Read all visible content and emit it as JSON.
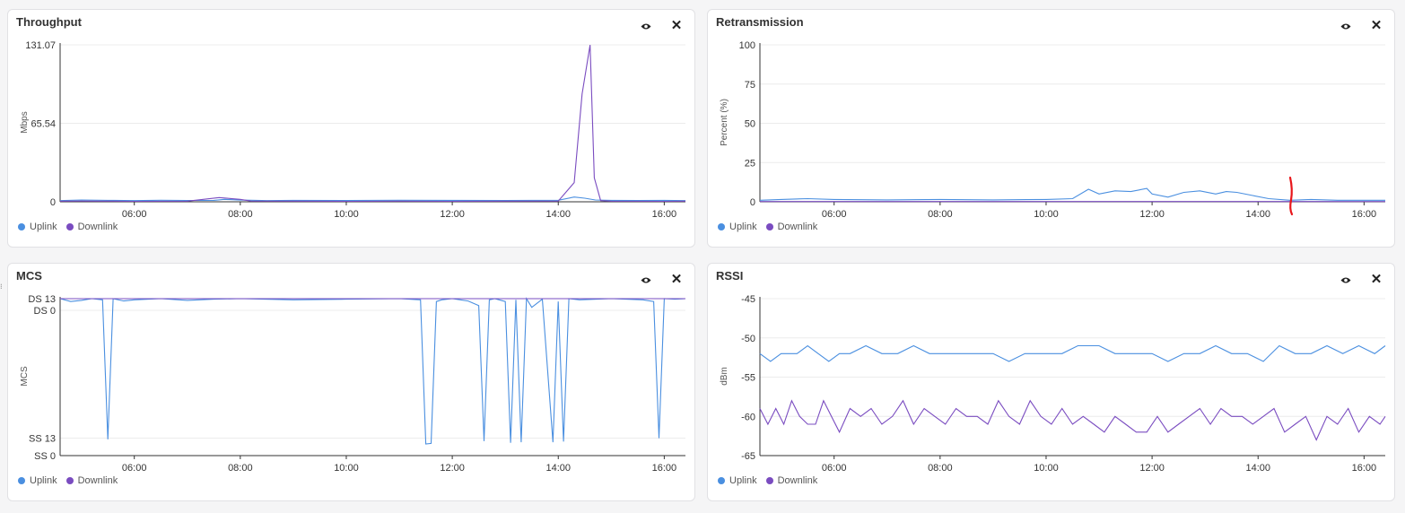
{
  "colors": {
    "uplink": "#4a8fe0",
    "downlink": "#7a4cc0",
    "annotation": "#e8161b",
    "grid": "#ececec"
  },
  "icons": {
    "eye": "eye-icon",
    "close": "close-icon"
  },
  "common_x_ticks": [
    "06:00",
    "08:00",
    "10:00",
    "12:00",
    "14:00",
    "16:00"
  ],
  "panels": [
    {
      "title": "Throughput",
      "legend": [
        "Uplink",
        "Downlink"
      ]
    },
    {
      "title": "Retransmission",
      "legend": [
        "Uplink",
        "Downlink"
      ]
    },
    {
      "title": "MCS",
      "legend": [
        "Uplink",
        "Downlink"
      ]
    },
    {
      "title": "RSSI",
      "legend": [
        "Uplink",
        "Downlink"
      ]
    }
  ],
  "chart_data": [
    {
      "type": "line",
      "title": "Throughput",
      "ylabel": "Mbps",
      "x_range_hours": [
        4.6,
        16.4
      ],
      "ylim": [
        0,
        131.07
      ],
      "y_ticks": [
        {
          "label": "131.07",
          "value": 131.07
        },
        {
          "label": "65.54",
          "value": 65.54
        },
        {
          "label": "0",
          "value": 0
        }
      ],
      "x_ticks": [
        "06:00",
        "08:00",
        "10:00",
        "12:00",
        "14:00",
        "16:00"
      ],
      "series": [
        {
          "name": "Uplink",
          "x": [
            4.6,
            5.0,
            5.5,
            6.0,
            6.5,
            7.0,
            7.5,
            7.7,
            8.0,
            8.5,
            9.0,
            10.0,
            11.0,
            12.0,
            13.0,
            14.0,
            14.3,
            14.5,
            14.7,
            15.0,
            15.5,
            16.0,
            16.4
          ],
          "y": [
            1,
            1.5,
            1.2,
            1,
            1.3,
            1.1,
            1.2,
            2,
            1.4,
            1,
            1.2,
            1.1,
            1.3,
            1.2,
            1.1,
            1.3,
            4,
            3,
            1.5,
            1.2,
            1.1,
            1.2,
            1
          ]
        },
        {
          "name": "Downlink",
          "x": [
            4.6,
            5.0,
            5.5,
            6.0,
            7.0,
            7.6,
            7.8,
            8.0,
            8.2,
            9.0,
            10.0,
            11.0,
            12.0,
            13.0,
            14.0,
            14.3,
            14.45,
            14.6,
            14.68,
            14.8,
            15.0,
            16.0,
            16.4
          ],
          "y": [
            0.5,
            0.6,
            0.5,
            0.4,
            0.5,
            3.5,
            2.8,
            2,
            0.6,
            0.5,
            0.4,
            0.5,
            0.4,
            0.5,
            0.6,
            16,
            90,
            131,
            20,
            1,
            0.5,
            0.4,
            0.5
          ]
        }
      ]
    },
    {
      "type": "line",
      "title": "Retransmission",
      "ylabel": "Percent (%)",
      "x_range_hours": [
        4.6,
        16.4
      ],
      "ylim": [
        0,
        100
      ],
      "y_ticks": [
        {
          "label": "100",
          "value": 100
        },
        {
          "label": "75",
          "value": 75
        },
        {
          "label": "50",
          "value": 50
        },
        {
          "label": "25",
          "value": 25
        },
        {
          "label": "0",
          "value": 0
        }
      ],
      "x_ticks": [
        "06:00",
        "08:00",
        "10:00",
        "12:00",
        "14:00",
        "16:00"
      ],
      "series": [
        {
          "name": "Uplink",
          "x": [
            4.6,
            5.0,
            5.5,
            6.0,
            7.0,
            8.0,
            9.0,
            10.0,
            10.5,
            10.8,
            11.0,
            11.3,
            11.6,
            11.9,
            12.0,
            12.3,
            12.6,
            12.9,
            13.2,
            13.4,
            13.6,
            13.9,
            14.2,
            14.6,
            15.0,
            15.5,
            16.0,
            16.4
          ],
          "y": [
            1,
            1.5,
            2,
            1.5,
            1.2,
            1.5,
            1.2,
            1.5,
            2,
            8,
            5,
            7,
            6.5,
            8.5,
            5,
            3,
            6,
            7,
            5,
            6.5,
            6,
            4,
            2,
            1,
            1.5,
            1,
            1,
            1
          ]
        },
        {
          "name": "Downlink",
          "x": [
            4.6,
            6.0,
            8.0,
            10.0,
            12.0,
            14.0,
            16.0,
            16.4
          ],
          "y": [
            0.2,
            0.2,
            0.2,
            0.2,
            0.2,
            0.2,
            0.2,
            0.2
          ]
        }
      ]
    },
    {
      "type": "line",
      "title": "MCS",
      "ylabel": "MCS",
      "x_range_hours": [
        4.6,
        16.4
      ],
      "ylim": [
        0,
        27
      ],
      "y_ticks": [
        {
          "label": "DS 13",
          "value": 27
        },
        {
          "label": "DS 0",
          "value": 25
        },
        {
          "label": "SS 13",
          "value": 3
        },
        {
          "label": "SS 0",
          "value": 0
        }
      ],
      "x_ticks": [
        "06:00",
        "08:00",
        "10:00",
        "12:00",
        "14:00",
        "16:00"
      ],
      "series": [
        {
          "name": "Uplink",
          "x": [
            4.6,
            4.8,
            5.0,
            5.2,
            5.4,
            5.5,
            5.6,
            5.8,
            6.0,
            6.5,
            7.0,
            7.5,
            8.0,
            9.0,
            10.0,
            11.0,
            11.4,
            11.5,
            11.6,
            11.7,
            11.8,
            12.0,
            12.3,
            12.5,
            12.6,
            12.7,
            12.8,
            13.0,
            13.1,
            13.2,
            13.3,
            13.4,
            13.5,
            13.7,
            13.9,
            14.0,
            14.1,
            14.2,
            14.4,
            15.0,
            15.6,
            15.8,
            15.9,
            16.0,
            16.2,
            16.4
          ],
          "y": [
            27,
            26.5,
            26.7,
            27,
            26.8,
            2.8,
            27,
            26.6,
            26.8,
            27,
            26.7,
            26.9,
            27,
            26.8,
            26.9,
            27,
            26.8,
            2,
            2.1,
            26.5,
            26.8,
            27,
            26.6,
            25.8,
            2.5,
            26.8,
            27,
            26.5,
            2.2,
            26.8,
            2.3,
            27,
            25.5,
            26.9,
            2.3,
            26.5,
            2.4,
            27,
            26.8,
            27,
            26.8,
            26.5,
            3,
            27,
            26.9,
            27
          ]
        },
        {
          "name": "Downlink",
          "x": [
            4.6,
            6.0,
            8.0,
            10.0,
            12.0,
            14.0,
            16.0,
            16.4
          ],
          "y": [
            27,
            27,
            27,
            27,
            27,
            27,
            27,
            27
          ]
        }
      ]
    },
    {
      "type": "line",
      "title": "RSSI",
      "ylabel": "dBm",
      "x_range_hours": [
        4.6,
        16.4
      ],
      "ylim": [
        -65,
        -45
      ],
      "y_ticks": [
        {
          "label": "-45",
          "value": -45
        },
        {
          "label": "-50",
          "value": -50
        },
        {
          "label": "-55",
          "value": -55
        },
        {
          "label": "-60",
          "value": -60
        },
        {
          "label": "-65",
          "value": -65
        }
      ],
      "x_ticks": [
        "06:00",
        "08:00",
        "10:00",
        "12:00",
        "14:00",
        "16:00"
      ],
      "series": [
        {
          "name": "Uplink",
          "x": [
            4.6,
            4.8,
            5.0,
            5.3,
            5.5,
            5.7,
            5.9,
            6.1,
            6.3,
            6.6,
            6.9,
            7.2,
            7.5,
            7.8,
            8.0,
            8.5,
            9.0,
            9.3,
            9.6,
            10.0,
            10.3,
            10.6,
            11.0,
            11.3,
            11.6,
            12.0,
            12.3,
            12.6,
            12.9,
            13.2,
            13.5,
            13.8,
            14.1,
            14.4,
            14.7,
            15.0,
            15.3,
            15.6,
            15.9,
            16.2,
            16.4
          ],
          "y": [
            -52,
            -53,
            -52,
            -52,
            -51,
            -52,
            -53,
            -52,
            -52,
            -51,
            -52,
            -52,
            -51,
            -52,
            -52,
            -52,
            -52,
            -53,
            -52,
            -52,
            -52,
            -51,
            -51,
            -52,
            -52,
            -52,
            -53,
            -52,
            -52,
            -51,
            -52,
            -52,
            -53,
            -51,
            -52,
            -52,
            -51,
            -52,
            -51,
            -52,
            -51
          ]
        },
        {
          "name": "Downlink",
          "x": [
            4.6,
            4.75,
            4.9,
            5.05,
            5.2,
            5.35,
            5.5,
            5.65,
            5.8,
            5.95,
            6.1,
            6.3,
            6.5,
            6.7,
            6.9,
            7.1,
            7.3,
            7.5,
            7.7,
            7.9,
            8.1,
            8.3,
            8.5,
            8.7,
            8.9,
            9.1,
            9.3,
            9.5,
            9.7,
            9.9,
            10.1,
            10.3,
            10.5,
            10.7,
            10.9,
            11.1,
            11.3,
            11.5,
            11.7,
            11.9,
            12.1,
            12.3,
            12.5,
            12.7,
            12.9,
            13.1,
            13.3,
            13.5,
            13.7,
            13.9,
            14.1,
            14.3,
            14.5,
            14.7,
            14.9,
            15.1,
            15.3,
            15.5,
            15.7,
            15.9,
            16.1,
            16.3,
            16.4
          ],
          "y": [
            -59,
            -61,
            -59,
            -61,
            -58,
            -60,
            -61,
            -61,
            -58,
            -60,
            -62,
            -59,
            -60,
            -59,
            -61,
            -60,
            -58,
            -61,
            -59,
            -60,
            -61,
            -59,
            -60,
            -60,
            -61,
            -58,
            -60,
            -61,
            -58,
            -60,
            -61,
            -59,
            -61,
            -60,
            -61,
            -62,
            -60,
            -61,
            -62,
            -62,
            -60,
            -62,
            -61,
            -60,
            -59,
            -61,
            -59,
            -60,
            -60,
            -61,
            -60,
            -59,
            -62,
            -61,
            -60,
            -63,
            -60,
            -61,
            -59,
            -62,
            -60,
            -61,
            -60
          ]
        }
      ]
    }
  ]
}
